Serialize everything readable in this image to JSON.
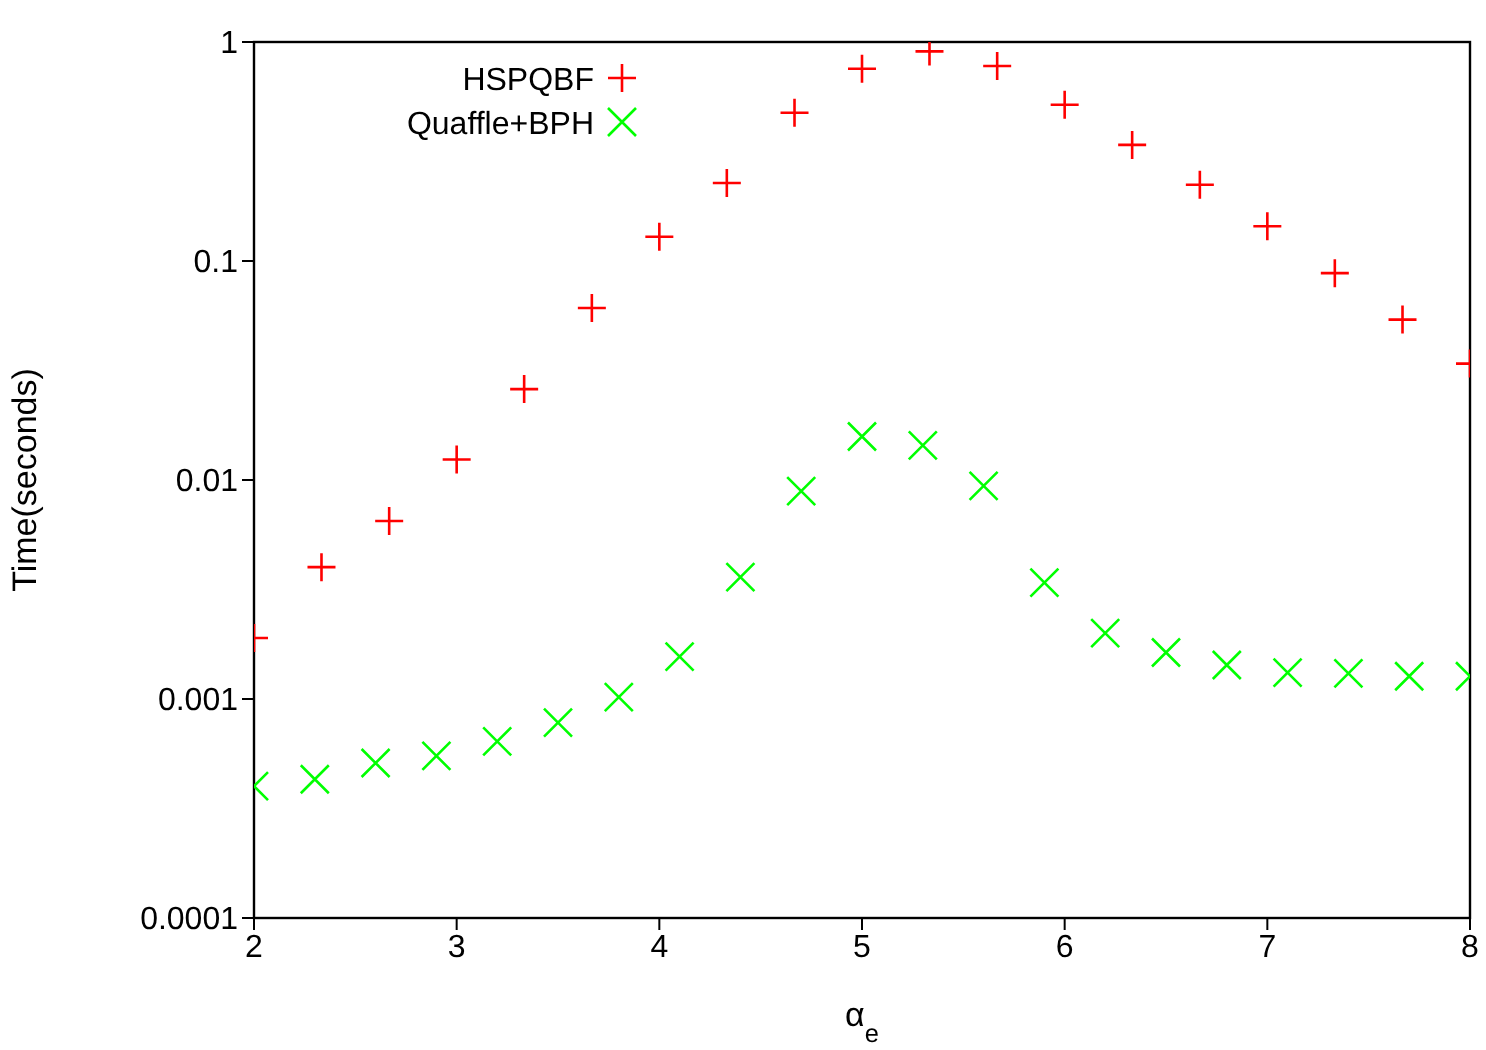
{
  "chart_data": {
    "type": "scatter",
    "xlabel": "α$_{e}$",
    "ylabel": "Time(seconds)",
    "xlim": [
      2,
      8
    ],
    "xticks": [
      2,
      3,
      4,
      5,
      6,
      7,
      8
    ],
    "ylim": [
      0.0001,
      1
    ],
    "yticks": [
      0.0001,
      0.001,
      0.01,
      0.1,
      1
    ],
    "log": "y",
    "grid": false,
    "legend": "top left",
    "series": [
      {
        "name": "HSPQBF",
        "color": "#ff0000",
        "marker": "plus",
        "x": [
          2,
          2.333,
          2.667,
          3,
          3.333,
          3.667,
          4,
          4.333,
          4.667,
          5,
          5.333,
          5.667,
          6,
          6.333,
          6.667,
          7,
          7.333,
          7.667,
          8
        ],
        "values": [
          0.0019,
          0.004,
          0.0065,
          0.0124,
          0.026,
          0.061,
          0.129,
          0.227,
          0.475,
          0.755,
          0.906,
          0.777,
          0.517,
          0.339,
          0.223,
          0.144,
          0.088,
          0.054,
          0.034
        ]
      },
      {
        "name": "Quaffle+BPH",
        "color": "#00ff00",
        "marker": "cross",
        "x": [
          2,
          2.3,
          2.6,
          2.9,
          3.2,
          3.5,
          3.8,
          4.1,
          4.4,
          4.7,
          5,
          5.3,
          5.6,
          5.9,
          6.2,
          6.5,
          6.8,
          7.1,
          7.4,
          7.7,
          8
        ],
        "values": [
          0.0004,
          0.00043,
          0.00051,
          0.00055,
          0.00064,
          0.00078,
          0.00102,
          0.00156,
          0.0036,
          0.0089,
          0.0158,
          0.0144,
          0.0094,
          0.0034,
          0.002,
          0.00163,
          0.00143,
          0.00132,
          0.00131,
          0.00127,
          0.00127
        ]
      }
    ]
  }
}
